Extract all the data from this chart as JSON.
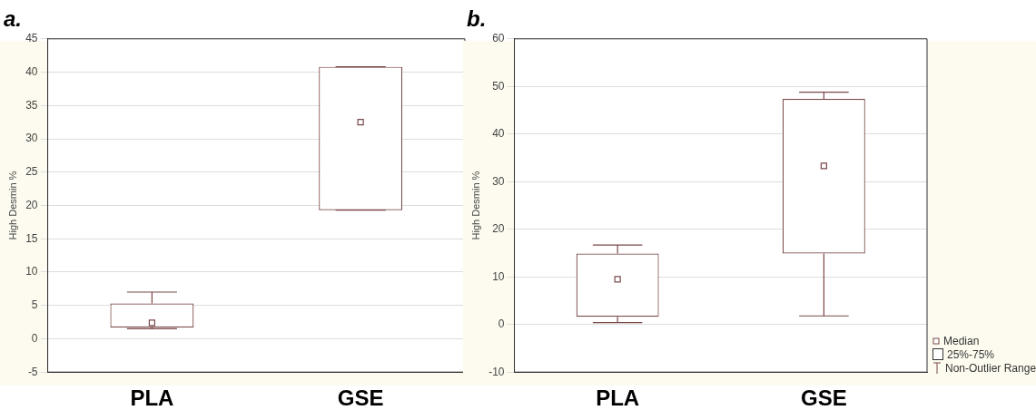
{
  "chart_data": [
    {
      "type": "box",
      "title": "a.",
      "ylabel": "High Desmin %",
      "categories": [
        "PLA",
        "GSE"
      ],
      "color": "#7a4848",
      "boxes": [
        {
          "low": 1.5,
          "q1": 1.7,
          "median": 2.4,
          "q3": 5.3,
          "high": 7
        },
        {
          "low": 19.3,
          "q1": 19.3,
          "median": 32.5,
          "q3": 40.8,
          "high": 40.8
        }
      ],
      "ylim": [
        -5,
        45
      ],
      "yticks": [
        -5,
        0,
        5,
        10,
        15,
        20,
        25,
        30,
        35,
        40,
        45
      ],
      "grid": "y"
    },
    {
      "type": "box",
      "title": "b.",
      "ylabel": "High Desmin %",
      "categories": [
        "PLA",
        "GSE"
      ],
      "color": "#7a4848",
      "boxes": [
        {
          "low": 0.4,
          "q1": 1.6,
          "median": 9.5,
          "q3": 14.9,
          "high": 16.7
        },
        {
          "low": 1.8,
          "q1": 14.9,
          "median": 33.3,
          "q3": 47.4,
          "high": 48.8
        }
      ],
      "ylim": [
        -10,
        60
      ],
      "yticks": [
        -10,
        0,
        10,
        20,
        30,
        40,
        50,
        60
      ],
      "grid": "y",
      "annotations": [
        "Median",
        "25%-75%",
        "Non-Outlier Range"
      ]
    }
  ]
}
